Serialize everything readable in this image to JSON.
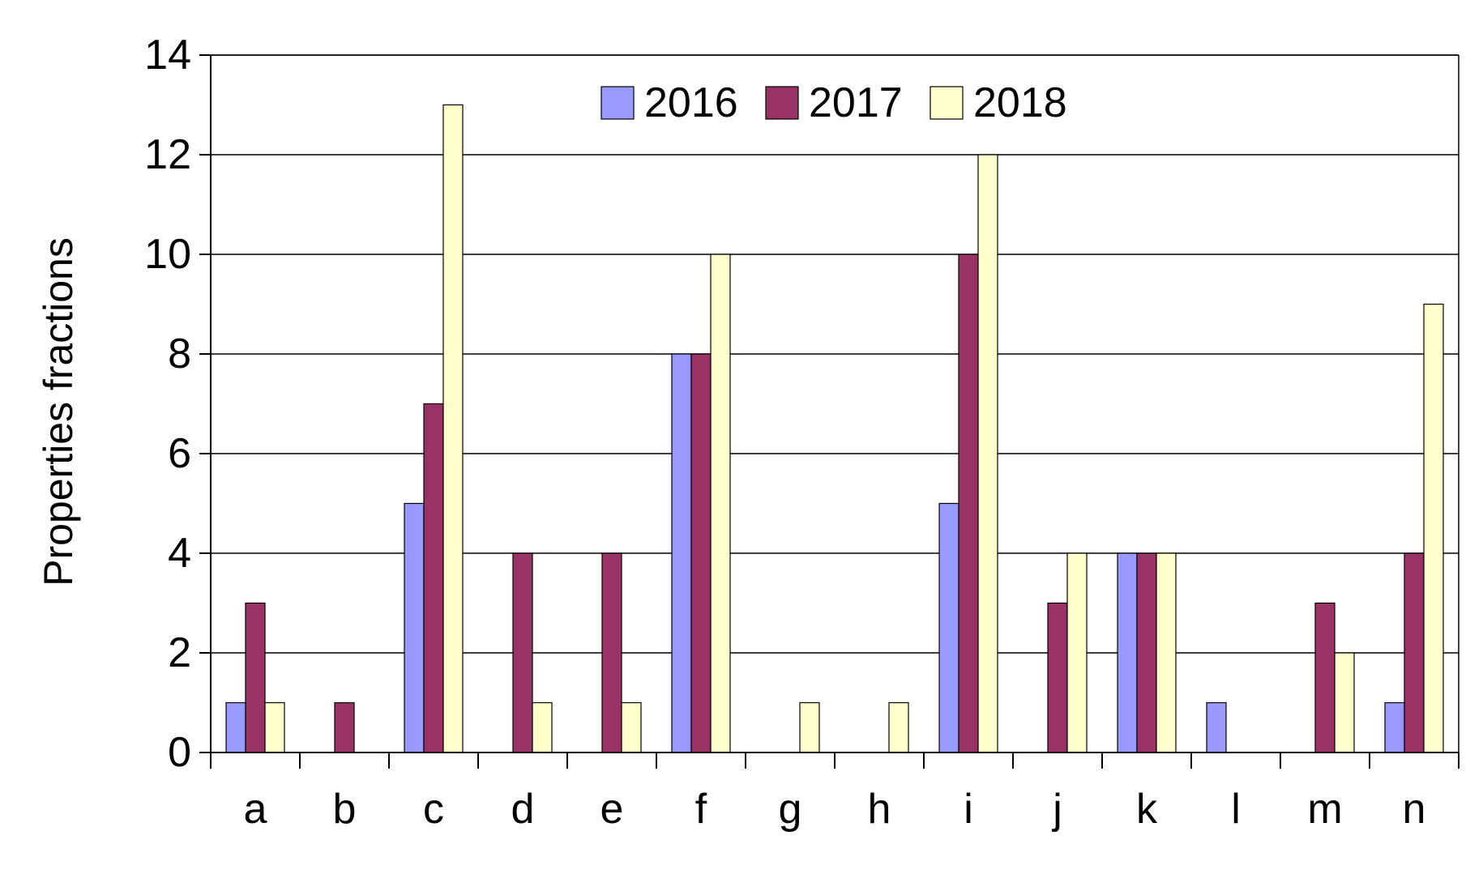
{
  "chart_data": {
    "type": "bar",
    "title": "",
    "xlabel": "",
    "ylabel": "Properties fractions",
    "ylim": [
      0,
      14
    ],
    "yticks": [
      0,
      2,
      4,
      6,
      8,
      10,
      12,
      14
    ],
    "grid": true,
    "legend_position": "top-center",
    "categories": [
      "a",
      "b",
      "c",
      "d",
      "e",
      "f",
      "g",
      "h",
      "i",
      "j",
      "k",
      "l",
      "m",
      "n"
    ],
    "series": [
      {
        "name": "2016",
        "color": "#9999ff",
        "values": [
          1,
          0,
          5,
          0,
          0,
          8,
          0,
          0,
          5,
          0,
          4,
          1,
          0,
          1
        ]
      },
      {
        "name": "2017",
        "color": "#993366",
        "values": [
          3,
          1,
          7,
          4,
          4,
          8,
          0,
          0,
          10,
          3,
          4,
          0,
          3,
          4
        ]
      },
      {
        "name": "2018",
        "color": "#ffffcc",
        "values": [
          1,
          0,
          13,
          1,
          1,
          10,
          1,
          1,
          12,
          4,
          4,
          0,
          2,
          9
        ]
      }
    ]
  }
}
